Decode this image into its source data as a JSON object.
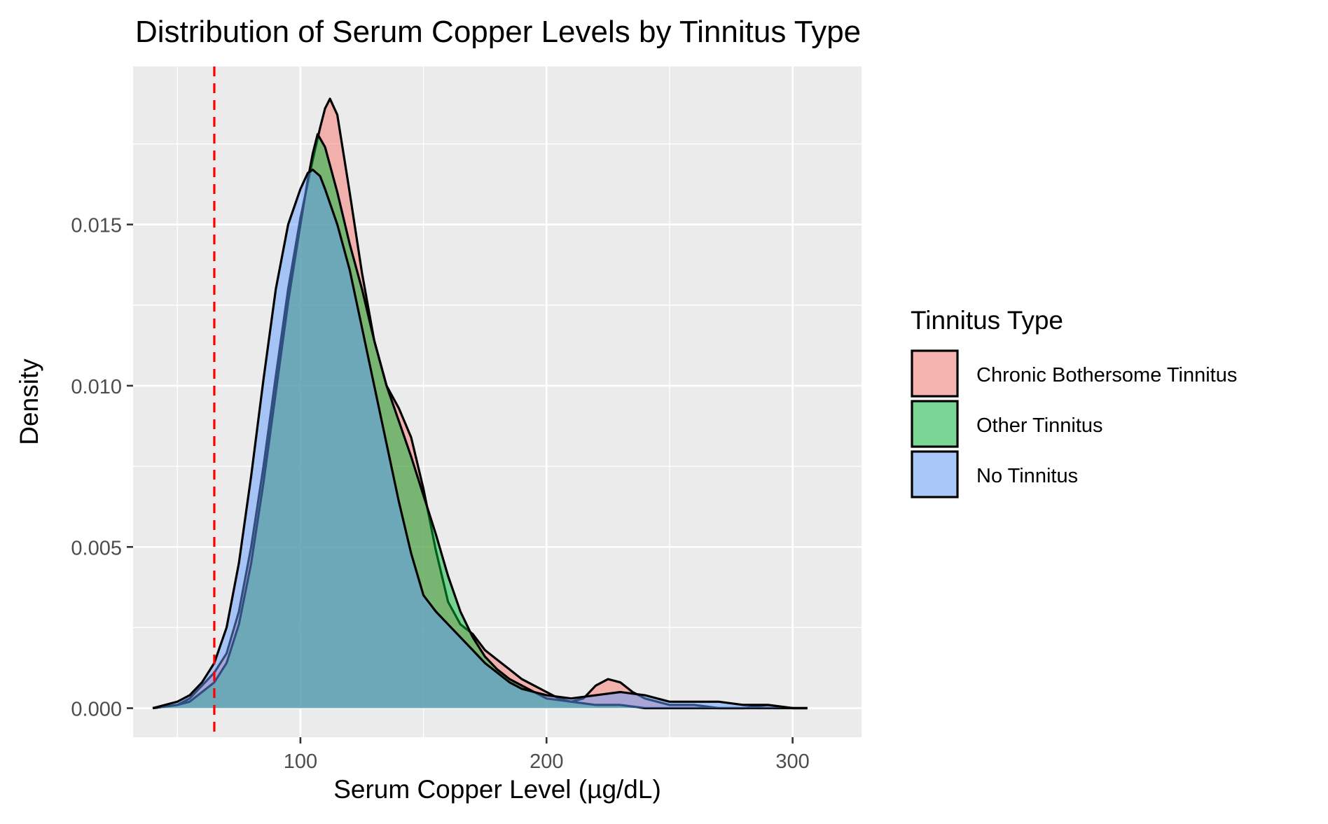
{
  "chart_data": {
    "type": "area",
    "title": "Distribution of Serum Copper Levels by Tinnitus Type",
    "xlabel": "Serum Copper Level (µg/dL)",
    "ylabel": "Density",
    "xlim": [
      32,
      328
    ],
    "ylim": [
      -0.0009,
      0.0199
    ],
    "x_ticks": [
      100,
      200,
      300
    ],
    "x_tick_labels": [
      "100",
      "200",
      "300"
    ],
    "y_ticks": [
      0.0,
      0.005,
      0.01,
      0.015
    ],
    "y_tick_labels": [
      "0.000",
      "0.005",
      "0.010",
      "0.015"
    ],
    "grid": true,
    "legend_title": "Tinnitus Type",
    "legend_position": "right",
    "reference_line": {
      "x": 65,
      "color": "#FF0000",
      "style": "dashed"
    },
    "series": [
      {
        "name": "Chronic Bothersome Tinnitus",
        "color": "#F8766D",
        "x": [
          40,
          50,
          55,
          60,
          65,
          70,
          75,
          80,
          85,
          90,
          95,
          100,
          105,
          108,
          110,
          112,
          115,
          120,
          125,
          130,
          135,
          140,
          145,
          150,
          155,
          160,
          165,
          170,
          175,
          180,
          185,
          190,
          195,
          200,
          205,
          210,
          215,
          220,
          225,
          230,
          235,
          240,
          245,
          250,
          260,
          270,
          280,
          290,
          300,
          306
        ],
        "y": [
          0.0,
          0.0001,
          0.0003,
          0.0007,
          0.0011,
          0.0017,
          0.003,
          0.005,
          0.0075,
          0.0103,
          0.013,
          0.0152,
          0.017,
          0.018,
          0.0186,
          0.0189,
          0.0184,
          0.016,
          0.0135,
          0.0114,
          0.01,
          0.0093,
          0.0084,
          0.0068,
          0.0049,
          0.0033,
          0.0026,
          0.0023,
          0.0018,
          0.0015,
          0.0012,
          0.0009,
          0.0007,
          0.0005,
          0.0003,
          0.0002,
          0.0003,
          0.0007,
          0.0009,
          0.0008,
          0.0005,
          0.0003,
          0.0002,
          0.0001,
          0.0001,
          0.0,
          0.0,
          0.0001,
          0.0,
          0.0
        ]
      },
      {
        "name": "Other Tinnitus",
        "color": "#00BA38",
        "x": [
          40,
          50,
          55,
          60,
          65,
          70,
          75,
          80,
          85,
          90,
          95,
          100,
          103,
          105,
          107,
          110,
          115,
          120,
          125,
          130,
          135,
          140,
          145,
          150,
          155,
          160,
          165,
          170,
          175,
          180,
          185,
          190,
          195,
          200,
          210,
          220,
          230,
          240,
          250,
          260,
          270,
          280,
          290,
          300,
          306
        ],
        "y": [
          0.0,
          0.0001,
          0.0002,
          0.0005,
          0.0008,
          0.0014,
          0.0026,
          0.0045,
          0.007,
          0.0098,
          0.0126,
          0.015,
          0.0164,
          0.0172,
          0.0178,
          0.0174,
          0.016,
          0.0144,
          0.013,
          0.0114,
          0.01,
          0.0089,
          0.0078,
          0.0066,
          0.0054,
          0.0041,
          0.003,
          0.0022,
          0.0016,
          0.0012,
          0.0009,
          0.0007,
          0.0005,
          0.0003,
          0.0002,
          0.0001,
          0.0001,
          0.0,
          0.0,
          0.0,
          0.0,
          0.0,
          0.0,
          0.0,
          0.0
        ]
      },
      {
        "name": "No Tinnitus",
        "color": "#619CFF",
        "x": [
          40,
          50,
          55,
          60,
          65,
          70,
          75,
          80,
          85,
          90,
          95,
          100,
          103,
          105,
          108,
          110,
          115,
          120,
          125,
          130,
          135,
          140,
          145,
          150,
          155,
          160,
          165,
          170,
          175,
          180,
          185,
          190,
          195,
          200,
          210,
          220,
          230,
          240,
          250,
          260,
          270,
          280,
          290,
          300,
          306
        ],
        "y": [
          0.0,
          0.0002,
          0.0004,
          0.0008,
          0.0014,
          0.0025,
          0.0045,
          0.0072,
          0.0102,
          0.013,
          0.015,
          0.0161,
          0.0166,
          0.0167,
          0.0165,
          0.0161,
          0.015,
          0.0136,
          0.0118,
          0.01,
          0.0082,
          0.0064,
          0.0048,
          0.0035,
          0.003,
          0.0026,
          0.0022,
          0.0018,
          0.0014,
          0.0011,
          0.0008,
          0.0006,
          0.0005,
          0.0004,
          0.0003,
          0.0004,
          0.0005,
          0.0004,
          0.0002,
          0.0002,
          0.0002,
          0.0001,
          0.0001,
          0.0,
          0.0
        ]
      }
    ]
  }
}
